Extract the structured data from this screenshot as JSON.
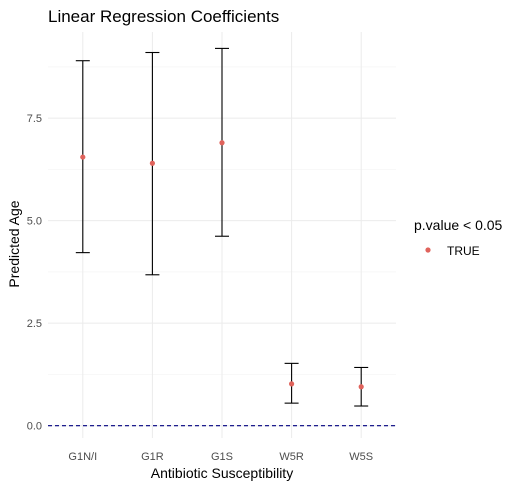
{
  "chart_data": {
    "type": "scatter",
    "title": "Linear Regression Coefficients",
    "xlabel": "Antibiotic Susceptibility",
    "ylabel": "Predicted Age",
    "categories": [
      "G1N/I",
      "G1R",
      "G1S",
      "W5R",
      "W5S"
    ],
    "series": [
      {
        "name": "TRUE",
        "values": [
          6.55,
          6.4,
          6.9,
          1.02,
          0.95
        ],
        "lower": [
          4.22,
          3.68,
          4.62,
          0.55,
          0.48
        ],
        "upper": [
          8.9,
          9.1,
          9.2,
          1.52,
          1.42
        ]
      }
    ],
    "ylim": [
      -0.3,
      9.6
    ],
    "yticks": [
      0.0,
      2.5,
      5.0,
      7.5
    ],
    "ytick_labels": [
      "0.0",
      "2.5",
      "5.0",
      "7.5"
    ],
    "reference_line": {
      "y": 0,
      "style": "dashed",
      "color": "#000080"
    },
    "legend": {
      "title": "p.value < 0.05",
      "position": "right"
    },
    "point_color": "#e0635c",
    "grid": true
  }
}
